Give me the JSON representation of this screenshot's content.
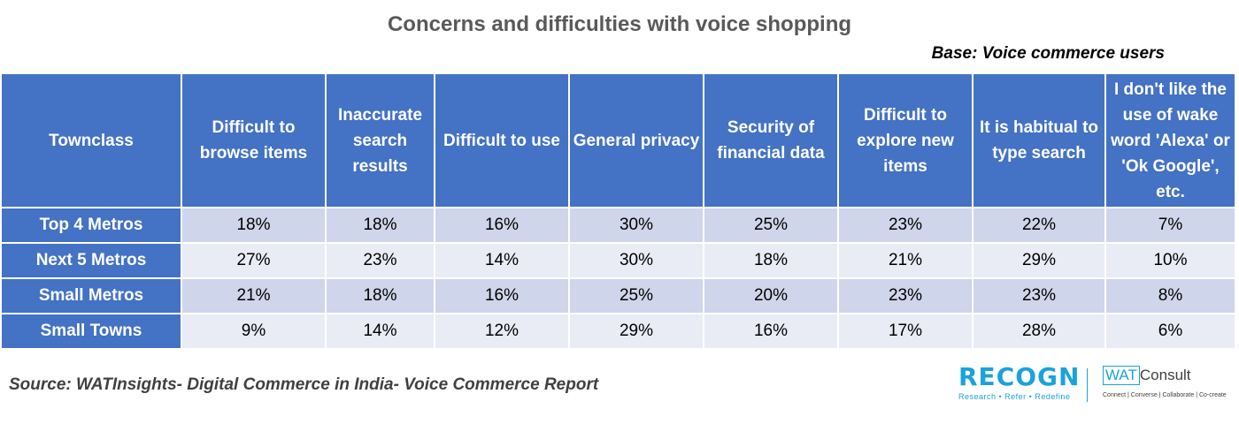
{
  "chart_data": {
    "type": "table",
    "title": "Concerns and difficulties with voice shopping",
    "subtitle": "Base: Voice commerce users",
    "row_header_label": "Townclass",
    "columns": [
      "Difficult to browse items",
      "Inaccurate search results",
      "Difficult to use",
      "General privacy",
      "Security of financial data",
      "Difficult to explore new items",
      "It is habitual to type search",
      "I don't like the use of wake word 'Alexa' or 'Ok Google', etc."
    ],
    "rows": [
      {
        "name": "Top 4 Metros",
        "values": [
          "18%",
          "18%",
          "16%",
          "30%",
          "25%",
          "23%",
          "22%",
          "7%"
        ]
      },
      {
        "name": "Next 5 Metros",
        "values": [
          "27%",
          "23%",
          "14%",
          "30%",
          "18%",
          "21%",
          "29%",
          "10%"
        ]
      },
      {
        "name": "Small Metros",
        "values": [
          "21%",
          "18%",
          "16%",
          "25%",
          "20%",
          "23%",
          "23%",
          "8%"
        ]
      },
      {
        "name": "Small Towns",
        "values": [
          "9%",
          "14%",
          "12%",
          "29%",
          "16%",
          "17%",
          "28%",
          "6%"
        ]
      }
    ],
    "source": "Source: WATInsights- Digital Commerce in India- Voice Commerce Report"
  },
  "logos": {
    "recogn": {
      "word": "RECOGN",
      "tagline": "Research • Refer • Redefine",
      "color": "#1aa3d9"
    },
    "watconsult": {
      "mark": "WAT",
      "word": "Consult",
      "tagline": "Connect | Converse | Collaborate | Co-create"
    }
  },
  "colors": {
    "header_fill": "#4472c4",
    "row_band_dark": "#cfd5ea",
    "row_band_light": "#e9ebf5",
    "title": "#595959"
  }
}
